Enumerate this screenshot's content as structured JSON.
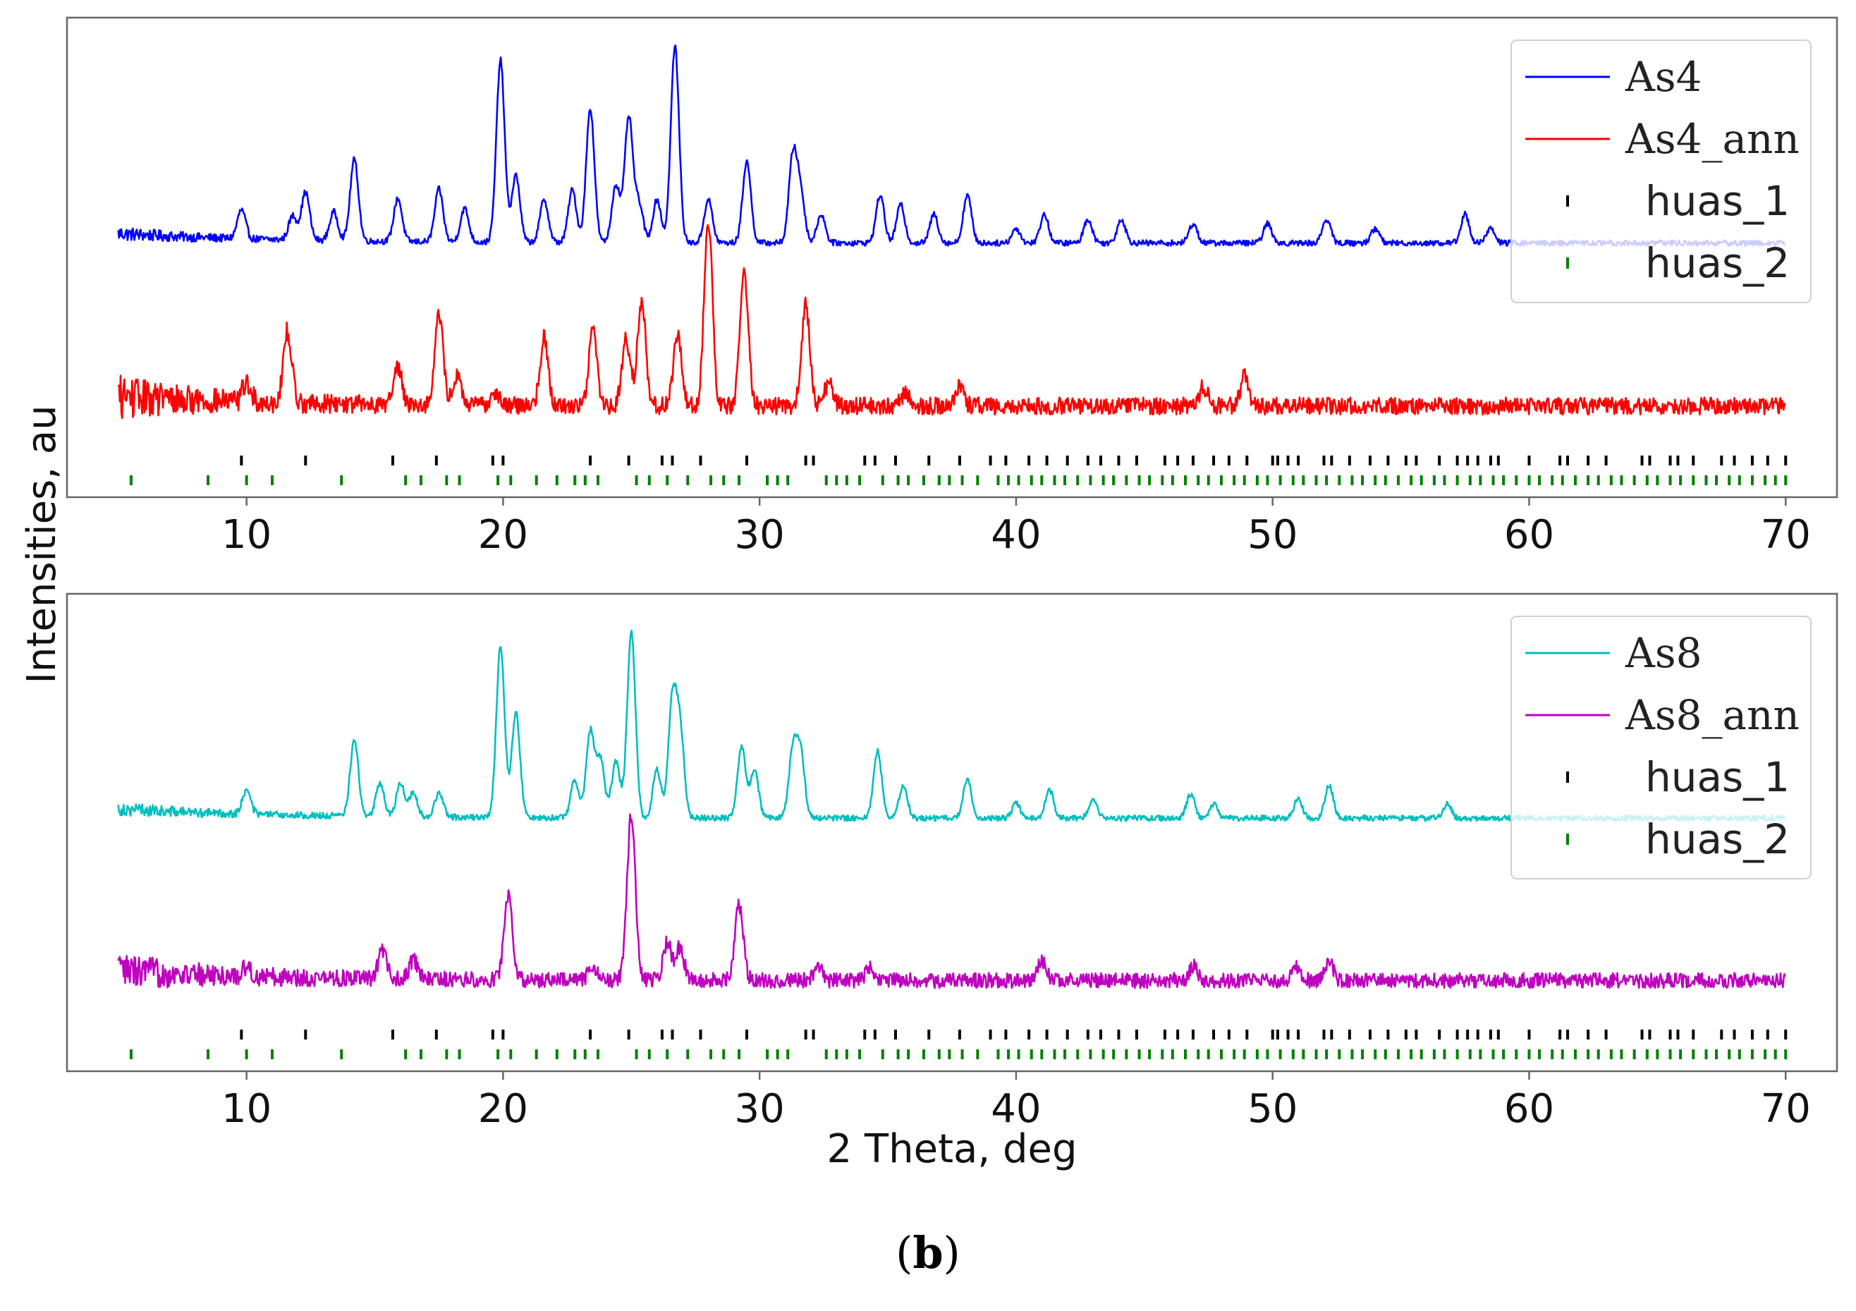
{
  "figure": {
    "caption_open": "(",
    "caption_letter": "b",
    "caption_close": ")",
    "ylabel": "Intensities, au",
    "xlabel": "2 Theta, deg"
  },
  "colors": {
    "As4": "#0000ff",
    "As4_ann": "#ff0000",
    "As8": "#00bfbf",
    "As8_ann": "#bf00bf",
    "huas_1": "#000000",
    "huas_2": "#008000",
    "frame": "#666666"
  },
  "chart_data": [
    {
      "type": "line",
      "panel": "top",
      "xlabel": "2 Theta, deg",
      "ylabel": "Intensities, au",
      "xlim": [
        3,
        72
      ],
      "xticks": [
        10,
        20,
        30,
        40,
        50,
        60,
        70
      ],
      "yticks": [],
      "legend": "top-right",
      "series": [
        {
          "name": "As4",
          "color": "#0000ff",
          "offset": 0.53,
          "baseline": 0.02,
          "noise": 0.006,
          "peaks": [
            [
              9.8,
              0.06
            ],
            [
              11.8,
              0.05
            ],
            [
              12.3,
              0.1
            ],
            [
              13.4,
              0.06
            ],
            [
              14.2,
              0.17
            ],
            [
              15.9,
              0.09
            ],
            [
              17.5,
              0.11
            ],
            [
              18.5,
              0.07
            ],
            [
              19.9,
              0.38
            ],
            [
              20.5,
              0.14
            ],
            [
              21.6,
              0.09
            ],
            [
              22.7,
              0.11
            ],
            [
              23.4,
              0.28
            ],
            [
              24.4,
              0.12
            ],
            [
              24.9,
              0.26
            ],
            [
              25.3,
              0.08
            ],
            [
              26.0,
              0.09
            ],
            [
              26.7,
              0.41
            ],
            [
              28.0,
              0.09
            ],
            [
              29.5,
              0.17
            ],
            [
              31.3,
              0.18
            ],
            [
              31.6,
              0.1
            ],
            [
              32.4,
              0.06
            ],
            [
              34.7,
              0.1
            ],
            [
              35.5,
              0.08
            ],
            [
              36.8,
              0.06
            ],
            [
              38.1,
              0.1
            ],
            [
              40.0,
              0.03
            ],
            [
              41.1,
              0.06
            ],
            [
              42.8,
              0.05
            ],
            [
              44.1,
              0.05
            ],
            [
              46.9,
              0.04
            ],
            [
              49.8,
              0.04
            ],
            [
              52.1,
              0.05
            ],
            [
              54.0,
              0.03
            ],
            [
              57.5,
              0.06
            ],
            [
              58.5,
              0.03
            ]
          ]
        },
        {
          "name": "As4_ann",
          "color": "#ff0000",
          "offset": 0.19,
          "baseline": 0.02,
          "noise": 0.018,
          "peaks": [
            [
              10.0,
              0.04
            ],
            [
              11.6,
              0.15
            ],
            [
              15.9,
              0.08
            ],
            [
              17.5,
              0.19
            ],
            [
              18.2,
              0.06
            ],
            [
              19.7,
              0.03
            ],
            [
              21.6,
              0.14
            ],
            [
              23.5,
              0.16
            ],
            [
              24.8,
              0.14
            ],
            [
              25.4,
              0.22
            ],
            [
              26.8,
              0.15
            ],
            [
              28.0,
              0.39
            ],
            [
              29.4,
              0.28
            ],
            [
              31.8,
              0.21
            ],
            [
              32.7,
              0.05
            ],
            [
              35.7,
              0.03
            ],
            [
              37.8,
              0.04
            ],
            [
              47.3,
              0.04
            ],
            [
              48.9,
              0.06
            ]
          ]
        }
      ],
      "reference_ticks": [
        {
          "name": "huas_1",
          "color": "#000000",
          "positions": [
            9.8,
            12.3,
            15.7,
            17.4,
            19.6,
            20.0,
            23.4,
            24.9,
            26.2,
            26.6,
            27.7,
            29.5,
            31.8,
            32.1,
            34.1,
            34.5,
            35.3,
            36.6,
            37.8,
            39.0,
            39.6,
            40.5,
            41.2,
            42.0,
            42.8,
            43.3,
            44.0,
            44.7,
            45.8,
            46.3,
            46.9,
            47.7,
            48.3,
            49.0,
            50.0,
            50.2,
            50.6,
            51.0,
            52.0,
            52.3,
            53.0,
            53.8,
            54.5,
            55.2,
            55.6,
            56.5,
            57.2,
            57.6,
            58.0,
            58.5,
            58.8,
            60.0,
            61.2,
            61.5,
            62.3,
            63.0,
            64.4,
            64.7,
            65.5,
            65.8,
            66.4,
            67.5,
            68.0,
            68.7,
            69.3,
            70.0
          ]
        },
        {
          "name": "huas_2",
          "color": "#008000",
          "positions": [
            5.5,
            8.5,
            10.0,
            11.0,
            13.7,
            16.2,
            16.8,
            17.8,
            18.3,
            19.8,
            20.3,
            21.3,
            22.1,
            22.8,
            23.2,
            23.7,
            25.2,
            25.7,
            26.4,
            27.2,
            28.1,
            28.6,
            29.2,
            30.3,
            30.7,
            31.1,
            32.6,
            33.0,
            33.4,
            33.9,
            34.8,
            35.4,
            35.8,
            36.4,
            37.0,
            37.4,
            37.9,
            38.5,
            39.3,
            39.7,
            40.1,
            40.6,
            41.0,
            41.5,
            41.9,
            42.4,
            42.9,
            43.4,
            43.8,
            44.3,
            44.8,
            45.2,
            45.7,
            46.1,
            46.6,
            47.1,
            47.5,
            48.0,
            48.5,
            48.9,
            49.4,
            49.8,
            50.3,
            50.8,
            51.2,
            51.7,
            52.1,
            52.6,
            53.1,
            53.5,
            54.0,
            54.4,
            54.9,
            55.4,
            55.8,
            56.3,
            56.7,
            57.2,
            57.7,
            58.1,
            58.6,
            59.0,
            59.5,
            60.0,
            60.4,
            60.9,
            61.3,
            61.8,
            62.3,
            62.7,
            63.2,
            63.6,
            64.1,
            64.6,
            65.0,
            65.5,
            65.9,
            66.4,
            66.9,
            67.3,
            67.8,
            68.2,
            68.7,
            69.2,
            69.6,
            70.0
          ]
        }
      ]
    },
    {
      "type": "line",
      "panel": "bottom",
      "xlabel": "2 Theta, deg",
      "ylabel": "Intensities, au",
      "xlim": [
        3,
        72
      ],
      "xticks": [
        10,
        20,
        30,
        40,
        50,
        60,
        70
      ],
      "yticks": [],
      "legend": "top-right",
      "series": [
        {
          "name": "As8",
          "color": "#00bfbf",
          "offset": 0.53,
          "baseline": 0.02,
          "noise": 0.006,
          "peaks": [
            [
              10.0,
              0.05
            ],
            [
              14.2,
              0.16
            ],
            [
              15.2,
              0.07
            ],
            [
              16.0,
              0.07
            ],
            [
              16.5,
              0.05
            ],
            [
              17.5,
              0.05
            ],
            [
              19.9,
              0.36
            ],
            [
              20.5,
              0.22
            ],
            [
              22.8,
              0.08
            ],
            [
              23.4,
              0.18
            ],
            [
              23.8,
              0.12
            ],
            [
              24.4,
              0.12
            ],
            [
              25.0,
              0.39
            ],
            [
              26.0,
              0.1
            ],
            [
              26.6,
              0.24
            ],
            [
              26.9,
              0.18
            ],
            [
              29.3,
              0.15
            ],
            [
              29.8,
              0.1
            ],
            [
              31.3,
              0.14
            ],
            [
              31.6,
              0.13
            ],
            [
              34.6,
              0.14
            ],
            [
              35.6,
              0.07
            ],
            [
              38.1,
              0.08
            ],
            [
              40.0,
              0.03
            ],
            [
              41.3,
              0.06
            ],
            [
              43.0,
              0.04
            ],
            [
              46.8,
              0.05
            ],
            [
              47.7,
              0.03
            ],
            [
              51.0,
              0.04
            ],
            [
              52.2,
              0.07
            ],
            [
              56.8,
              0.03
            ]
          ]
        },
        {
          "name": "As8_ann",
          "color": "#bf00bf",
          "offset": 0.19,
          "baseline": 0.02,
          "noise": 0.016,
          "peaks": [
            [
              10.0,
              0.02
            ],
            [
              15.3,
              0.06
            ],
            [
              16.5,
              0.04
            ],
            [
              20.2,
              0.18
            ],
            [
              23.5,
              0.03
            ],
            [
              25.0,
              0.35
            ],
            [
              26.4,
              0.08
            ],
            [
              26.9,
              0.07
            ],
            [
              29.2,
              0.16
            ],
            [
              32.3,
              0.03
            ],
            [
              34.3,
              0.03
            ],
            [
              41.0,
              0.04
            ],
            [
              46.9,
              0.03
            ],
            [
              50.9,
              0.03
            ],
            [
              52.2,
              0.04
            ]
          ]
        }
      ],
      "reference_ticks": [
        {
          "name": "huas_1",
          "color": "#000000",
          "positions": [
            9.8,
            12.3,
            15.7,
            17.4,
            19.6,
            20.0,
            23.4,
            24.9,
            26.2,
            26.6,
            27.7,
            29.5,
            31.8,
            32.1,
            34.1,
            34.5,
            35.3,
            36.6,
            37.8,
            39.0,
            39.6,
            40.5,
            41.2,
            42.0,
            42.8,
            43.3,
            44.0,
            44.7,
            45.8,
            46.3,
            46.9,
            47.7,
            48.3,
            49.0,
            50.0,
            50.2,
            50.6,
            51.0,
            52.0,
            52.3,
            53.0,
            53.8,
            54.5,
            55.2,
            55.6,
            56.5,
            57.2,
            57.6,
            58.0,
            58.5,
            58.8,
            60.0,
            61.2,
            61.5,
            62.3,
            63.0,
            64.4,
            64.7,
            65.5,
            65.8,
            66.4,
            67.5,
            68.0,
            68.7,
            69.3,
            70.0
          ]
        },
        {
          "name": "huas_2",
          "color": "#008000",
          "positions": [
            5.5,
            8.5,
            10.0,
            11.0,
            13.7,
            16.2,
            16.8,
            17.8,
            18.3,
            19.8,
            20.3,
            21.3,
            22.1,
            22.8,
            23.2,
            23.7,
            25.2,
            25.7,
            26.4,
            27.2,
            28.1,
            28.6,
            29.2,
            30.3,
            30.7,
            31.1,
            32.6,
            33.0,
            33.4,
            33.9,
            34.8,
            35.4,
            35.8,
            36.4,
            37.0,
            37.4,
            37.9,
            38.5,
            39.3,
            39.7,
            40.1,
            40.6,
            41.0,
            41.5,
            41.9,
            42.4,
            42.9,
            43.4,
            43.8,
            44.3,
            44.8,
            45.2,
            45.7,
            46.1,
            46.6,
            47.1,
            47.5,
            48.0,
            48.5,
            48.9,
            49.4,
            49.8,
            50.3,
            50.8,
            51.2,
            51.7,
            52.1,
            52.6,
            53.1,
            53.5,
            54.0,
            54.4,
            54.9,
            55.4,
            55.8,
            56.3,
            56.7,
            57.2,
            57.7,
            58.1,
            58.6,
            59.0,
            59.5,
            60.0,
            60.4,
            60.9,
            61.3,
            61.8,
            62.3,
            62.7,
            63.2,
            63.6,
            64.1,
            64.6,
            65.0,
            65.5,
            65.9,
            66.4,
            66.9,
            67.3,
            67.8,
            68.2,
            68.7,
            69.2,
            69.6,
            70.0
          ]
        }
      ]
    }
  ]
}
